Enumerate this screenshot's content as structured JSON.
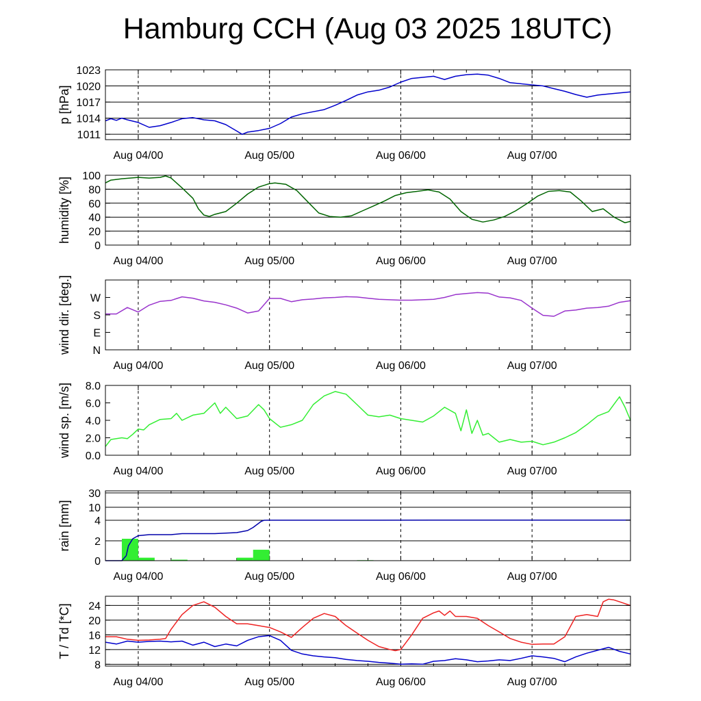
{
  "title": "Hamburg CCH (Aug 03 2025 18UTC)",
  "chart_data": [
    {
      "type": "line",
      "ylabel": "p [hPa]",
      "x_ticks": [
        "Aug 04/00",
        "Aug 05/00",
        "Aug 06/00",
        "Aug 07/00"
      ],
      "x_tick_hours": [
        6,
        30,
        54,
        78
      ],
      "xlim_hours": [
        0,
        96
      ],
      "ylim": [
        1010,
        1023
      ],
      "y_ticks": [
        1011,
        1014,
        1017,
        1020,
        1023
      ],
      "y_tick_labels": [
        "1011",
        "1014",
        "1017",
        "1020",
        "1023"
      ],
      "grid_y": [
        1011,
        1014,
        1017,
        1020,
        1023
      ],
      "series": [
        {
          "color": "#0000cc",
          "x": [
            0,
            1,
            2,
            3,
            4,
            6,
            8,
            10,
            12,
            14,
            16,
            18,
            20,
            22,
            24,
            25,
            26,
            28,
            30,
            32,
            34,
            36,
            38,
            40,
            42,
            44,
            46,
            48,
            50,
            52,
            54,
            56,
            58,
            60,
            62,
            64,
            66,
            68,
            70,
            72,
            74,
            76,
            78,
            80,
            82,
            84,
            86,
            88,
            90,
            92,
            94,
            96
          ],
          "y": [
            1013.5,
            1013.9,
            1013.6,
            1014.0,
            1013.7,
            1013.2,
            1012.3,
            1012.6,
            1013.2,
            1013.9,
            1014.1,
            1013.7,
            1013.5,
            1012.8,
            1011.6,
            1011.0,
            1011.4,
            1011.7,
            1012.1,
            1013.0,
            1014.2,
            1014.8,
            1015.2,
            1015.6,
            1016.4,
            1017.3,
            1018.3,
            1018.9,
            1019.2,
            1019.8,
            1020.7,
            1021.4,
            1021.6,
            1021.8,
            1021.2,
            1021.8,
            1022.1,
            1022.2,
            1022.0,
            1021.4,
            1020.6,
            1020.4,
            1020.2,
            1020.0,
            1019.5,
            1019.0,
            1018.4,
            1017.9,
            1018.3,
            1018.5,
            1018.7,
            1018.9
          ]
        }
      ]
    },
    {
      "type": "line",
      "ylabel": "humidity [%]",
      "x_ticks": [
        "Aug 04/00",
        "Aug 05/00",
        "Aug 06/00",
        "Aug 07/00"
      ],
      "x_tick_hours": [
        6,
        30,
        54,
        78
      ],
      "xlim_hours": [
        0,
        96
      ],
      "ylim": [
        0,
        100
      ],
      "y_ticks": [
        0,
        20,
        40,
        60,
        80,
        100
      ],
      "y_tick_labels": [
        "0",
        "20",
        "40",
        "60",
        "80",
        "100"
      ],
      "grid_y": [
        20,
        40,
        60,
        80,
        100
      ],
      "series": [
        {
          "color": "#006400",
          "x": [
            0,
            1,
            3,
            6,
            8,
            10,
            11,
            12,
            14,
            16,
            17,
            18,
            19,
            20,
            22,
            24,
            26,
            28,
            30,
            31,
            33,
            35,
            37,
            39,
            41,
            43,
            45,
            47,
            49,
            51,
            53,
            55,
            57,
            59,
            61,
            63,
            65,
            67,
            69,
            71,
            73,
            75,
            77,
            79,
            81,
            83,
            85,
            87,
            89,
            91,
            93,
            95,
            96
          ],
          "y": [
            89,
            93,
            95,
            97,
            96,
            97,
            99,
            96,
            82,
            67,
            52,
            43,
            41,
            44,
            48,
            60,
            73,
            83,
            88,
            89,
            87,
            78,
            62,
            46,
            41,
            40,
            42,
            49,
            56,
            63,
            71,
            75,
            77,
            79,
            76,
            66,
            48,
            37,
            33,
            36,
            41,
            49,
            59,
            70,
            77,
            78,
            76,
            63,
            48,
            52,
            40,
            32,
            34
          ]
        }
      ]
    },
    {
      "type": "line",
      "ylabel": "wind dir. [deg.]",
      "x_ticks": [
        "Aug 04/00",
        "Aug 05/00",
        "Aug 06/00",
        "Aug 07/00"
      ],
      "x_tick_hours": [
        6,
        30,
        54,
        78
      ],
      "xlim_hours": [
        0,
        96
      ],
      "ylim": [
        0,
        360
      ],
      "y_ticks": [
        0,
        90,
        180,
        270
      ],
      "y_tick_labels": [
        "N",
        "E",
        "S",
        "W"
      ],
      "grid_y": [],
      "series": [
        {
          "color": "#9933cc",
          "x": [
            0,
            2,
            4,
            6,
            8,
            10,
            12,
            14,
            16,
            18,
            20,
            22,
            24,
            26,
            28,
            30,
            32,
            34,
            36,
            38,
            40,
            42,
            44,
            46,
            48,
            50,
            52,
            54,
            56,
            58,
            60,
            62,
            64,
            66,
            68,
            70,
            72,
            74,
            76,
            78,
            80,
            82,
            84,
            86,
            88,
            90,
            92,
            94,
            96
          ],
          "y": [
            185,
            185,
            218,
            195,
            230,
            250,
            255,
            273,
            266,
            252,
            245,
            232,
            215,
            190,
            200,
            265,
            265,
            248,
            258,
            262,
            268,
            270,
            274,
            272,
            266,
            260,
            258,
            256,
            256,
            258,
            260,
            270,
            285,
            290,
            295,
            292,
            272,
            268,
            255,
            215,
            178,
            173,
            200,
            205,
            215,
            218,
            225,
            245,
            253
          ]
        }
      ]
    },
    {
      "type": "line",
      "ylabel": "wind sp. [m/s]",
      "x_ticks": [
        "Aug 04/00",
        "Aug 05/00",
        "Aug 06/00",
        "Aug 07/00"
      ],
      "x_tick_hours": [
        6,
        30,
        54,
        78
      ],
      "xlim_hours": [
        0,
        96
      ],
      "ylim": [
        0,
        8
      ],
      "y_ticks": [
        0,
        2,
        4,
        6,
        8
      ],
      "y_tick_labels": [
        "0.0",
        "2.0",
        "4.0",
        "6.0",
        "8.0"
      ],
      "grid_y": [],
      "series": [
        {
          "color": "#33ee33",
          "x": [
            0,
            1,
            2,
            3,
            4,
            5,
            6,
            7,
            8,
            10,
            12,
            13,
            14,
            16,
            18,
            20,
            21,
            22,
            24,
            26,
            28,
            29,
            30,
            32,
            34,
            36,
            38,
            40,
            42,
            44,
            46,
            48,
            50,
            52,
            54,
            56,
            58,
            60,
            62,
            64,
            65,
            66,
            67,
            68,
            69,
            70,
            71,
            72,
            74,
            76,
            78,
            80,
            82,
            84,
            86,
            88,
            90,
            92,
            94,
            95,
            96
          ],
          "y": [
            1.0,
            1.8,
            1.9,
            2.0,
            1.9,
            2.4,
            3.0,
            2.9,
            3.5,
            4.1,
            4.2,
            4.8,
            4.0,
            4.6,
            4.8,
            6.0,
            4.8,
            5.5,
            4.2,
            4.5,
            5.8,
            5.2,
            4.2,
            3.2,
            3.5,
            4.0,
            5.8,
            6.8,
            7.3,
            7.0,
            5.8,
            4.6,
            4.4,
            4.6,
            4.2,
            4.0,
            3.8,
            4.5,
            5.5,
            4.8,
            2.8,
            5.2,
            2.5,
            4.0,
            2.3,
            2.5,
            2.0,
            1.5,
            1.8,
            1.5,
            1.6,
            1.2,
            1.5,
            2.0,
            2.6,
            3.5,
            4.5,
            5.0,
            6.7,
            5.5,
            4.0
          ]
        }
      ]
    },
    {
      "type": "bar",
      "ylabel": "rain [mm]",
      "x_ticks": [
        "Aug 04/00",
        "Aug 05/00",
        "Aug 06/00",
        "Aug 07/00"
      ],
      "x_tick_hours": [
        6,
        30,
        54,
        78
      ],
      "xlim_hours": [
        0,
        96
      ],
      "y_ticks": [
        0,
        2,
        4,
        10,
        30
      ],
      "y_tick_labels": [
        "0",
        "2",
        "4",
        "10",
        "30"
      ],
      "grid_y": [
        2,
        4,
        10,
        30
      ],
      "y_scale": "nonlinear (0, 2, 4, 10, 30)",
      "bars": {
        "color": "#33ee33",
        "hours": [
          4.5,
          7.5,
          13.5,
          25.5,
          28.5,
          47.5
        ],
        "values": [
          2.2,
          0.3,
          0.1,
          0.3,
          1.1,
          0.05
        ]
      },
      "series": [
        {
          "color": "#0000aa",
          "x": [
            0,
            3,
            3.8,
            4.2,
            5,
            6,
            8,
            10,
            12,
            14,
            16,
            18,
            20,
            22,
            24,
            26,
            27,
            28,
            28.5,
            29,
            30,
            40,
            50,
            60,
            70,
            80,
            90,
            96
          ],
          "y": [
            0,
            0,
            0.5,
            1.5,
            2.2,
            2.5,
            2.6,
            2.6,
            2.6,
            2.7,
            2.7,
            2.7,
            2.7,
            2.75,
            2.8,
            3.0,
            3.3,
            3.7,
            3.9,
            4.0,
            4.02,
            4.03,
            4.04,
            4.05,
            4.05,
            4.06,
            4.06,
            4.07
          ]
        }
      ]
    },
    {
      "type": "line",
      "ylabel": "T / Td [*C]",
      "x_ticks": [
        "Aug 04/00",
        "Aug 05/00",
        "Aug 06/00",
        "Aug 07/00"
      ],
      "x_tick_hours": [
        6,
        30,
        54,
        78
      ],
      "xlim_hours": [
        0,
        96
      ],
      "ylim": [
        7.5,
        26.5
      ],
      "y_ticks": [
        8,
        12,
        16,
        20,
        24
      ],
      "y_tick_labels": [
        "8",
        "12",
        "16",
        "20",
        "24"
      ],
      "grid_y": [
        8,
        12,
        16,
        20,
        24
      ],
      "series": [
        {
          "color": "#ee2222",
          "x": [
            0,
            2,
            4,
            6,
            8,
            10,
            11,
            12,
            14,
            16,
            18,
            20,
            22,
            24,
            26,
            28,
            30,
            32,
            34,
            36,
            38,
            40,
            42,
            44,
            46,
            48,
            50,
            52,
            53,
            54,
            56,
            58,
            60,
            61,
            62,
            63,
            64,
            66,
            68,
            70,
            72,
            74,
            76,
            78,
            80,
            82,
            84,
            86,
            88,
            90,
            91,
            92,
            93,
            94,
            96
          ],
          "y": [
            15.5,
            15.5,
            14.8,
            14.5,
            14.6,
            14.8,
            15.0,
            17.5,
            21.5,
            24.0,
            25.0,
            23.5,
            21.0,
            19.0,
            19.0,
            18.5,
            18.0,
            16.8,
            15.3,
            18.0,
            20.5,
            21.8,
            21.0,
            18.5,
            16.5,
            14.5,
            12.8,
            12.0,
            11.7,
            12.0,
            16.0,
            20.5,
            22.0,
            22.5,
            21.3,
            22.5,
            21.0,
            21.0,
            20.5,
            18.5,
            16.8,
            15.0,
            14.0,
            13.4,
            13.5,
            13.5,
            15.5,
            21.0,
            21.5,
            21.0,
            25.0,
            25.7,
            25.5,
            25.0,
            24.0
          ]
        },
        {
          "color": "#0000cc",
          "x": [
            0,
            2,
            4,
            6,
            8,
            10,
            12,
            14,
            16,
            18,
            20,
            22,
            24,
            26,
            28,
            30,
            32,
            34,
            36,
            38,
            40,
            42,
            44,
            46,
            48,
            50,
            52,
            54,
            56,
            58,
            60,
            62,
            64,
            66,
            68,
            70,
            72,
            74,
            76,
            78,
            80,
            82,
            84,
            86,
            88,
            90,
            92,
            94,
            96
          ],
          "y": [
            14.0,
            13.5,
            14.3,
            14.0,
            14.2,
            14.3,
            14.1,
            14.3,
            13.2,
            14.0,
            12.8,
            13.5,
            13.0,
            14.5,
            15.5,
            15.8,
            14.5,
            11.8,
            10.8,
            10.3,
            10.0,
            9.8,
            9.3,
            9.0,
            8.8,
            8.5,
            8.3,
            8.0,
            8.1,
            8.0,
            8.8,
            9.0,
            9.5,
            9.2,
            8.7,
            8.9,
            9.2,
            9.0,
            9.6,
            10.3,
            10.0,
            9.6,
            8.7,
            10.0,
            11.0,
            11.8,
            12.6,
            11.5,
            10.8
          ]
        }
      ]
    }
  ]
}
